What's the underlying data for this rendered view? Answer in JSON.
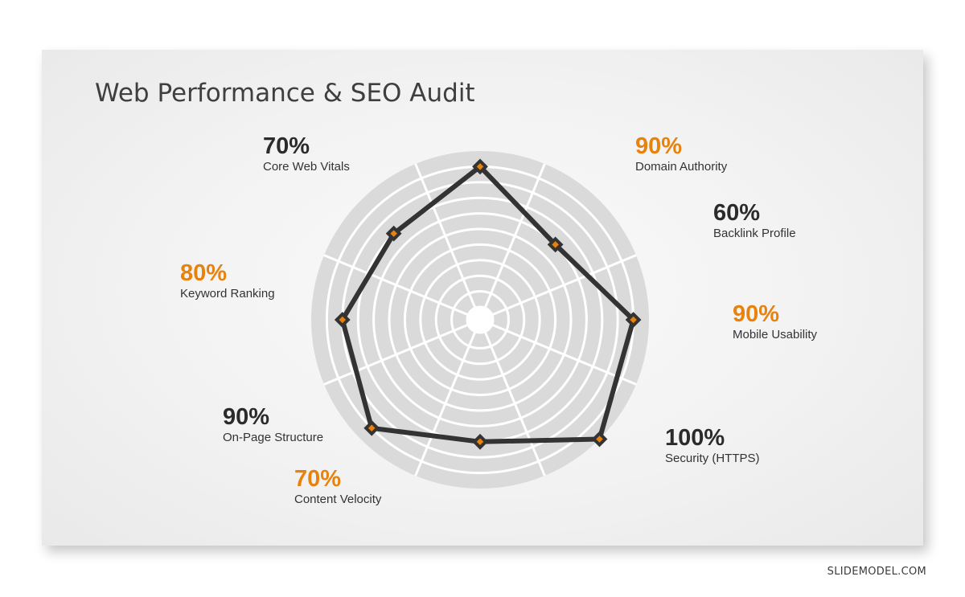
{
  "slide": {
    "title": "Web Performance & SEO Audit",
    "watermark": "SLIDEMODEL.COM"
  },
  "colors": {
    "accent": "#E8820C",
    "dark": "#2B2B2B",
    "ring_fill": "#DADADA",
    "grid": "#FFFFFF",
    "line": "#333333"
  },
  "chart_data": {
    "type": "radar",
    "title": "",
    "max": 100,
    "rings": 10,
    "grid": true,
    "series": [
      {
        "values": [
          90,
          60,
          90,
          100,
          70,
          90,
          80,
          70
        ]
      }
    ],
    "categories": [
      "Domain Authority",
      "Backlink Profile",
      "Mobile Usability",
      "Security (HTTPS)",
      "Content Velocity",
      "On-Page Structure",
      "Keyword Ranking",
      "Core Web Vitals"
    ],
    "labels": [
      {
        "pct": "90%",
        "name": "Domain Authority",
        "color": "accent"
      },
      {
        "pct": "60%",
        "name": "Backlink Profile",
        "color": "dark"
      },
      {
        "pct": "90%",
        "name": "Mobile Usability",
        "color": "accent"
      },
      {
        "pct": "100%",
        "name": "Security (HTTPS)",
        "color": "dark"
      },
      {
        "pct": "70%",
        "name": "Content Velocity",
        "color": "accent"
      },
      {
        "pct": "90%",
        "name": "On-Page Structure",
        "color": "dark"
      },
      {
        "pct": "80%",
        "name": "Keyword Ranking",
        "color": "accent"
      },
      {
        "pct": "70%",
        "name": "Core Web Vitals",
        "color": "dark"
      }
    ]
  }
}
